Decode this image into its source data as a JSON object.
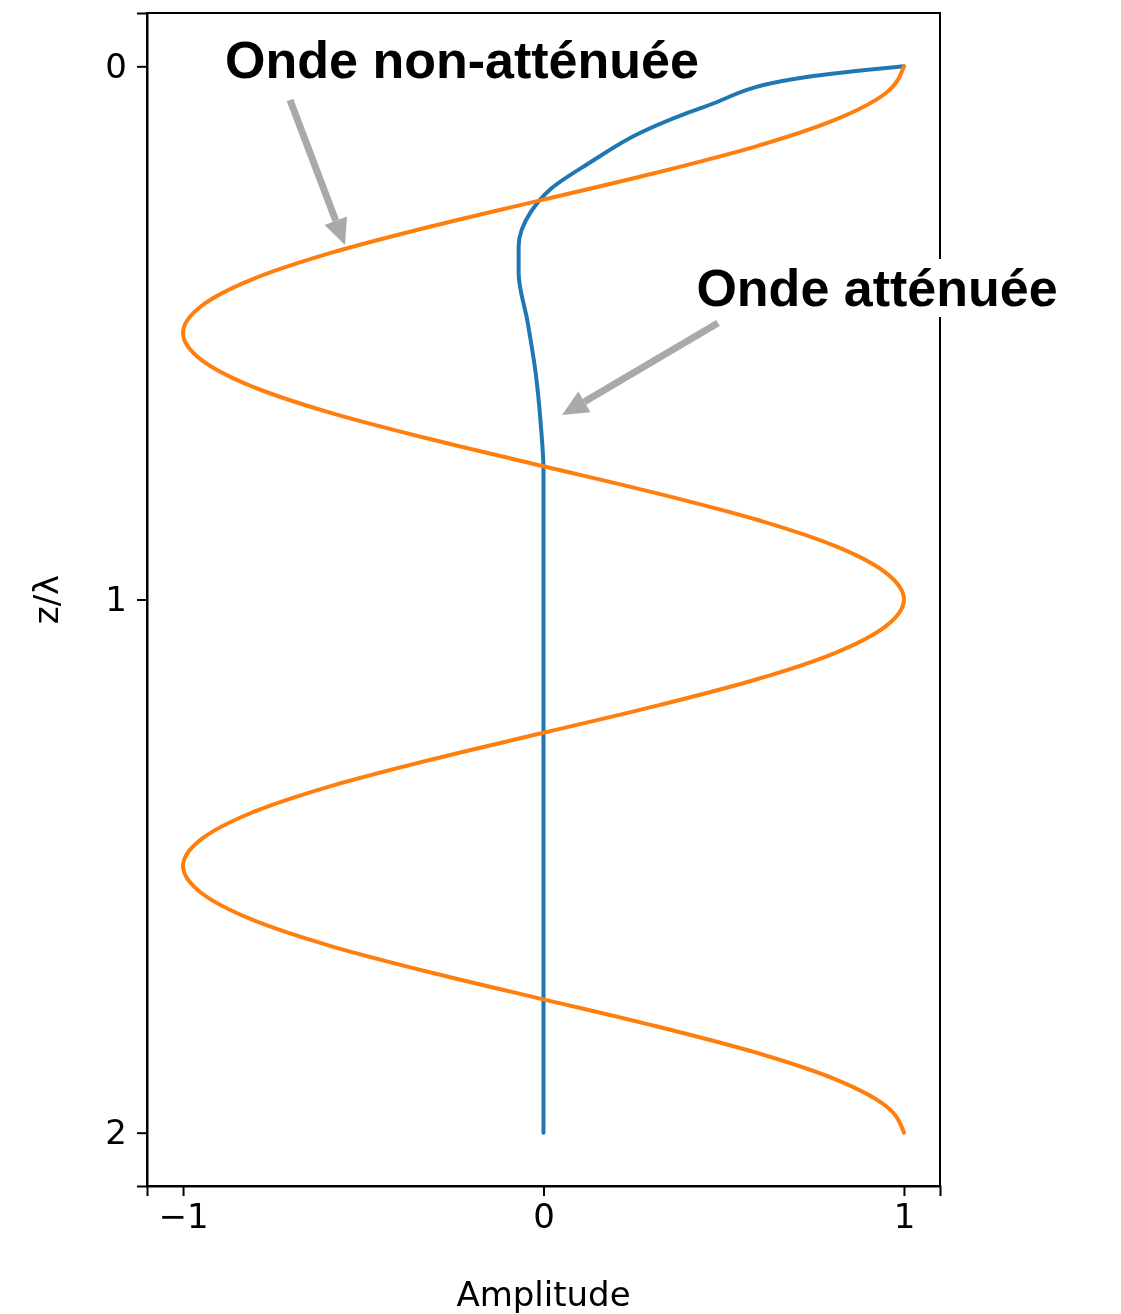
{
  "chart_data": {
    "type": "line",
    "xlabel": "Amplitude",
    "ylabel": "z/λ",
    "xlim": [
      -1.1,
      1.1
    ],
    "ylim": [
      2.1,
      -0.1
    ],
    "xticks": [
      {
        "value": -1,
        "label": "−1"
      },
      0,
      1
    ],
    "yticks": [
      0,
      1,
      2
    ],
    "grid": false,
    "series": [
      {
        "color": "#1f77b4",
        "x": [
          1,
          0.73,
          0.45,
          0.27,
          0.13,
          0.02,
          -0.036,
          -0.069,
          -0.069,
          -0.044,
          -0.022,
          -0.008,
          0,
          0,
          0,
          0,
          0
        ],
        "values": [
          0,
          0.02,
          0.075,
          0.124,
          0.18,
          0.23,
          0.274,
          0.338,
          0.387,
          0.48,
          0.574,
          0.668,
          0.76,
          1,
          1.5,
          1.8,
          2
        ]
      },
      {
        "color": "#ff7f0e",
        "x": [
          1,
          0.95,
          0.81,
          0.59,
          0.31,
          0,
          -0.31,
          -0.59,
          -0.81,
          -0.95,
          -1,
          -0.95,
          -0.81,
          -0.59,
          -0.31,
          0,
          0.31,
          0.59,
          0.81,
          0.95,
          1,
          0.95,
          0.81,
          0.59,
          0.31,
          0,
          -0.31,
          -0.59,
          -0.81,
          -0.95,
          -1,
          -0.95,
          -0.81,
          -0.59,
          -0.31,
          0,
          0.31,
          0.59,
          0.81,
          0.95,
          1
        ],
        "values": [
          0,
          0.05,
          0.1,
          0.15,
          0.2,
          0.25,
          0.3,
          0.35,
          0.4,
          0.45,
          0.5,
          0.55,
          0.6,
          0.65,
          0.7,
          0.75,
          0.8,
          0.85,
          0.9,
          0.95,
          1,
          1.05,
          1.1,
          1.15,
          1.2,
          1.25,
          1.3,
          1.35,
          1.4,
          1.45,
          1.5,
          1.55,
          1.6,
          1.65,
          1.7,
          1.75,
          1.8,
          1.85,
          1.9,
          1.95,
          2
        ]
      }
    ],
    "annotations": [
      "Onde non-atténuée",
      "Onde atténuée"
    ]
  }
}
